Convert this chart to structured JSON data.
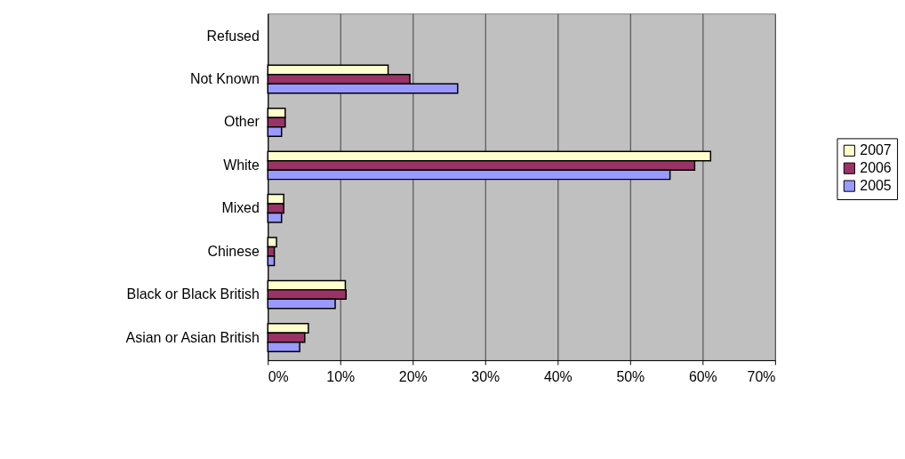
{
  "chart_data": {
    "type": "bar",
    "orientation": "horizontal",
    "categories": [
      "Refused",
      "Not Known",
      "Other",
      "White",
      "Mixed",
      "Chinese",
      "Black or Black British",
      "Asian or Asian British"
    ],
    "series": [
      {
        "name": "2007",
        "color": "#ffffcc",
        "values": [
          0,
          16.6,
          2.4,
          61.1,
          2.2,
          1.2,
          10.7,
          5.6
        ]
      },
      {
        "name": "2006",
        "color": "#993366",
        "values": [
          0,
          19.6,
          2.4,
          58.9,
          2.2,
          0.9,
          10.8,
          5.1
        ]
      },
      {
        "name": "2005",
        "color": "#9999ff",
        "values": [
          0,
          26.2,
          1.9,
          55.5,
          1.9,
          0.9,
          9.3,
          4.4
        ]
      }
    ],
    "xlim": [
      0,
      70
    ],
    "xticks": [
      {
        "value": 0,
        "label": "0%"
      },
      {
        "value": 10,
        "label": "10%"
      },
      {
        "value": 20,
        "label": "20%"
      },
      {
        "value": 30,
        "label": "30%"
      },
      {
        "value": 40,
        "label": "40%"
      },
      {
        "value": 50,
        "label": "50%"
      },
      {
        "value": 60,
        "label": "60%"
      },
      {
        "value": 70,
        "label": "70%"
      }
    ],
    "grid": "x",
    "legend": "right"
  }
}
